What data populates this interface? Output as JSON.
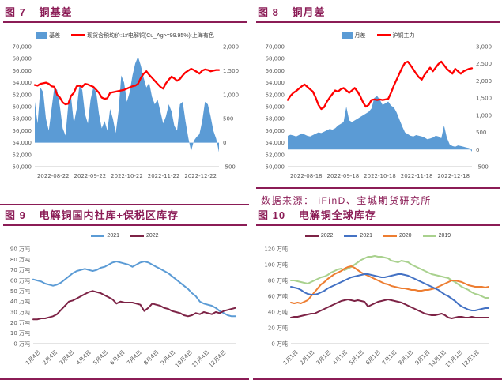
{
  "page": {
    "background": "#FFFFFF",
    "accent": "#8B1C56",
    "axis_text_color": "#595959"
  },
  "source_note": {
    "text": "数据来源：  iFinD、宝城期货研究所"
  },
  "chart_data": [
    {
      "id": "fig7",
      "type": "combo-area-line",
      "fig_label": "图 7",
      "title": "铜基差",
      "legend": [
        {
          "label": "基差",
          "color": "#5B9BD5",
          "marker": "bar"
        },
        {
          "label": "现货含税均价:1#电解铜(Cu_Ag>=99.95%):上海有色",
          "color": "#FF0000",
          "marker": "line"
        }
      ],
      "x_ticks": [
        "2022-08-22",
        "2022-09-22",
        "2022-10-22",
        "2022-11-22",
        "2022-12-22"
      ],
      "left_axis": {
        "min": 50000,
        "max": 70000,
        "step": 2000
      },
      "right_axis": {
        "min": -500,
        "max": 2000,
        "step": 500
      },
      "series": [
        {
          "name": "基差",
          "axis": "right",
          "type": "area",
          "color": "#5B9BD5",
          "values": [
            850,
            400,
            1150,
            1050,
            500,
            250,
            700,
            1150,
            1100,
            750,
            300,
            150,
            800,
            950,
            400,
            700,
            1200,
            1100,
            600,
            400,
            900,
            1150,
            1050,
            600,
            300,
            450,
            250,
            700,
            500,
            200,
            650,
            1400,
            1250,
            850,
            1050,
            1400,
            1650,
            1790,
            1600,
            1350,
            1150,
            1250,
            950,
            800,
            900,
            650,
            400,
            550,
            800,
            650,
            350,
            250,
            800,
            850,
            450,
            100,
            -180,
            40,
            120,
            180,
            450,
            850,
            800,
            550,
            250,
            80,
            -200
          ]
        },
        {
          "name": "现货含税均价:1#电解铜(Cu_Ag>=99.95%):上海有色",
          "axis": "left",
          "type": "line",
          "color": "#FF0000",
          "stroke_width": 2.3,
          "values": [
            63600,
            63500,
            63800,
            63900,
            64000,
            63800,
            63400,
            63300,
            62000,
            61500,
            60700,
            60400,
            60500,
            61800,
            62300,
            63400,
            63500,
            63300,
            63800,
            63700,
            63500,
            63300,
            62800,
            62300,
            61500,
            61300,
            61400,
            62300,
            62400,
            62500,
            62600,
            62700,
            62800,
            63000,
            63200,
            63400,
            63500,
            63800,
            64800,
            65500,
            65900,
            65300,
            64800,
            64300,
            63800,
            63300,
            63000,
            63900,
            64500,
            65000,
            64700,
            64300,
            64600,
            65200,
            65700,
            66000,
            66300,
            66100,
            65800,
            65500,
            66000,
            66200,
            66100,
            65900,
            66000,
            66100,
            66100
          ]
        }
      ]
    },
    {
      "id": "fig8",
      "type": "combo-area-line",
      "fig_label": "图 8",
      "title": "铜月差",
      "legend": [
        {
          "label": "月差",
          "color": "#5B9BD5",
          "marker": "bar"
        },
        {
          "label": "沪铜主力",
          "color": "#FF0000",
          "marker": "line"
        }
      ],
      "x_ticks": [
        "2022-08-18",
        "2022-09-18",
        "2022-10-18",
        "2022-11-18",
        "2022-12-18"
      ],
      "left_axis": {
        "min": 50000,
        "max": 70000,
        "step": 2000
      },
      "right_axis": {
        "min": -500,
        "max": 3000,
        "step": 500
      },
      "series": [
        {
          "name": "月差",
          "axis": "right",
          "type": "area",
          "color": "#5B9BD5",
          "values": [
            400,
            430,
            410,
            380,
            420,
            470,
            440,
            400,
            380,
            420,
            460,
            500,
            480,
            520,
            560,
            600,
            580,
            620,
            700,
            750,
            800,
            1250,
            850,
            800,
            850,
            900,
            950,
            1000,
            1050,
            1100,
            1200,
            1500,
            1560,
            1450,
            1300,
            1350,
            1400,
            1280,
            1230,
            1080,
            880,
            680,
            500,
            450,
            400,
            380,
            420,
            400,
            380,
            350,
            300,
            320,
            350,
            400,
            380,
            330,
            700,
            350,
            150,
            100,
            80,
            120,
            100,
            80,
            60,
            40,
            -60
          ]
        },
        {
          "name": "沪铜主力",
          "axis": "left",
          "type": "line",
          "color": "#FF0000",
          "stroke_width": 2.3,
          "values": [
            61100,
            61800,
            62300,
            62600,
            63000,
            63400,
            63700,
            63300,
            62900,
            62500,
            61500,
            60300,
            59600,
            59900,
            60800,
            61500,
            62100,
            62700,
            62500,
            62900,
            63100,
            62700,
            62300,
            62700,
            63100,
            62500,
            61700,
            60700,
            60000,
            60300,
            61100,
            61200,
            61100,
            61200,
            61100,
            61200,
            61300,
            62300,
            63500,
            64500,
            65500,
            66500,
            67300,
            67500,
            66900,
            66200,
            65500,
            64900,
            64500,
            65300,
            65900,
            66500,
            65900,
            66500,
            67100,
            67500,
            66900,
            66300,
            65900,
            65500,
            66300,
            65900,
            65500,
            65900,
            66100,
            66300,
            66400
          ]
        }
      ]
    },
    {
      "id": "fig9",
      "type": "line",
      "fig_label": "图 9",
      "title": "电解铜国内社库+保税区库存",
      "legend": [
        {
          "label": "2021",
          "color": "#5B9BD5",
          "marker": "line"
        },
        {
          "label": "2022",
          "color": "#7D2346",
          "marker": "line"
        }
      ],
      "x_ticks": [
        "1月4日",
        "2月4日",
        "3月4日",
        "4月4日",
        "5月4日",
        "6月4日",
        "7月4日",
        "8月4日",
        "9月4日",
        "10月4日",
        "11月4日",
        "12月4日"
      ],
      "left_axis": {
        "min": 0,
        "max": 90,
        "step": 10,
        "suffix": " 万吨"
      },
      "series": [
        {
          "name": "2021",
          "axis": "left",
          "type": "line",
          "color": "#5B9BD5",
          "stroke_width": 2,
          "values": [
            61,
            60,
            59,
            57,
            56,
            55,
            56,
            58,
            61,
            64,
            67,
            69,
            70,
            71,
            70,
            69,
            70,
            72,
            73,
            75,
            77,
            78,
            77,
            76,
            75,
            73,
            75,
            77,
            78,
            77,
            75,
            73,
            71,
            69,
            67,
            64,
            61,
            58,
            55,
            52,
            48,
            45,
            40,
            38,
            37,
            36,
            34,
            31,
            29,
            27,
            26,
            26
          ]
        },
        {
          "name": "2022",
          "axis": "left",
          "type": "line",
          "color": "#7D2346",
          "stroke_width": 2,
          "values": [
            23,
            23,
            24,
            24,
            25,
            26,
            28,
            32,
            36,
            40,
            41,
            43,
            45,
            47,
            49,
            50,
            49,
            48,
            46,
            44,
            42,
            38,
            40,
            39,
            39,
            39,
            38,
            37,
            31,
            34,
            38,
            37,
            36,
            34,
            33,
            31,
            30,
            29,
            27,
            26,
            27,
            29,
            28,
            30,
            29,
            28,
            30,
            29,
            31,
            32,
            33,
            34
          ]
        }
      ]
    },
    {
      "id": "fig10",
      "type": "line",
      "fig_label": "图 10",
      "title": "电解铜全球库存",
      "legend": [
        {
          "label": "2022",
          "color": "#7D2346",
          "marker": "line"
        },
        {
          "label": "2021",
          "color": "#4472C4",
          "marker": "line"
        },
        {
          "label": "2020",
          "color": "#ED7D31",
          "marker": "line"
        },
        {
          "label": "2019",
          "color": "#A9D18E",
          "marker": "line"
        }
      ],
      "x_ticks": [
        "1月1日",
        "2月1日",
        "3月1日",
        "4月1日",
        "5月1日",
        "6月1日",
        "7月1日",
        "8月1日",
        "9月1日",
        "10月1日",
        "11月1日",
        "12月1日"
      ],
      "left_axis": {
        "min": 0,
        "max": 120,
        "step": 20,
        "suffix": " 万吨"
      },
      "series": [
        {
          "name": "2019",
          "axis": "left",
          "type": "line",
          "color": "#A9D18E",
          "stroke_width": 2,
          "values": [
            80,
            80,
            79,
            78,
            77,
            76,
            78,
            80,
            82,
            84,
            85,
            87,
            90,
            92,
            94,
            95,
            93,
            95,
            97,
            100,
            103,
            106,
            108,
            110,
            110,
            111,
            110,
            110,
            109,
            108,
            105,
            104,
            103,
            105,
            104,
            103,
            100,
            98,
            96,
            94,
            92,
            90,
            88,
            87,
            86,
            85,
            84,
            83,
            80,
            78,
            75,
            72,
            70,
            68,
            65,
            63,
            62,
            60,
            58,
            58
          ]
        },
        {
          "name": "2020",
          "axis": "left",
          "type": "line",
          "color": "#ED7D31",
          "stroke_width": 2,
          "values": [
            52,
            51,
            52,
            51,
            53,
            55,
            60,
            65,
            70,
            75,
            78,
            82,
            85,
            88,
            90,
            92,
            95,
            97,
            98,
            96,
            93,
            90,
            88,
            86,
            84,
            82,
            80,
            78,
            76,
            75,
            73,
            72,
            71,
            70,
            70,
            69,
            68,
            68,
            67,
            67,
            68,
            68,
            69,
            70,
            72,
            74,
            76,
            78,
            80,
            80,
            79,
            78,
            76,
            74,
            73,
            72,
            72,
            72,
            71,
            72
          ]
        },
        {
          "name": "2021",
          "axis": "left",
          "type": "line",
          "color": "#4472C4",
          "stroke_width": 2,
          "values": [
            72,
            71,
            70,
            68,
            65,
            63,
            62,
            62,
            63,
            65,
            67,
            70,
            72,
            74,
            76,
            78,
            80,
            82,
            84,
            85,
            86,
            87,
            88,
            88,
            87,
            86,
            85,
            84,
            84,
            85,
            86,
            87,
            88,
            88,
            87,
            86,
            84,
            82,
            80,
            78,
            76,
            74,
            72,
            70,
            68,
            65,
            62,
            60,
            57,
            54,
            50,
            47,
            45,
            43,
            42,
            42,
            43,
            44,
            45,
            45
          ]
        },
        {
          "name": "2022",
          "axis": "left",
          "type": "line",
          "color": "#7D2346",
          "stroke_width": 2,
          "values": [
            33,
            34,
            34,
            35,
            36,
            37,
            38,
            38,
            40,
            42,
            44,
            46,
            48,
            50,
            52,
            54,
            55,
            56,
            55,
            54,
            55,
            54,
            53,
            47,
            49,
            51,
            53,
            54,
            55,
            56,
            55,
            54,
            53,
            52,
            50,
            48,
            46,
            44,
            42,
            40,
            38,
            37,
            36,
            36,
            37,
            38,
            36,
            33,
            32,
            33,
            34,
            34,
            33,
            33,
            34,
            33,
            33,
            33,
            33,
            33
          ]
        }
      ]
    }
  ]
}
